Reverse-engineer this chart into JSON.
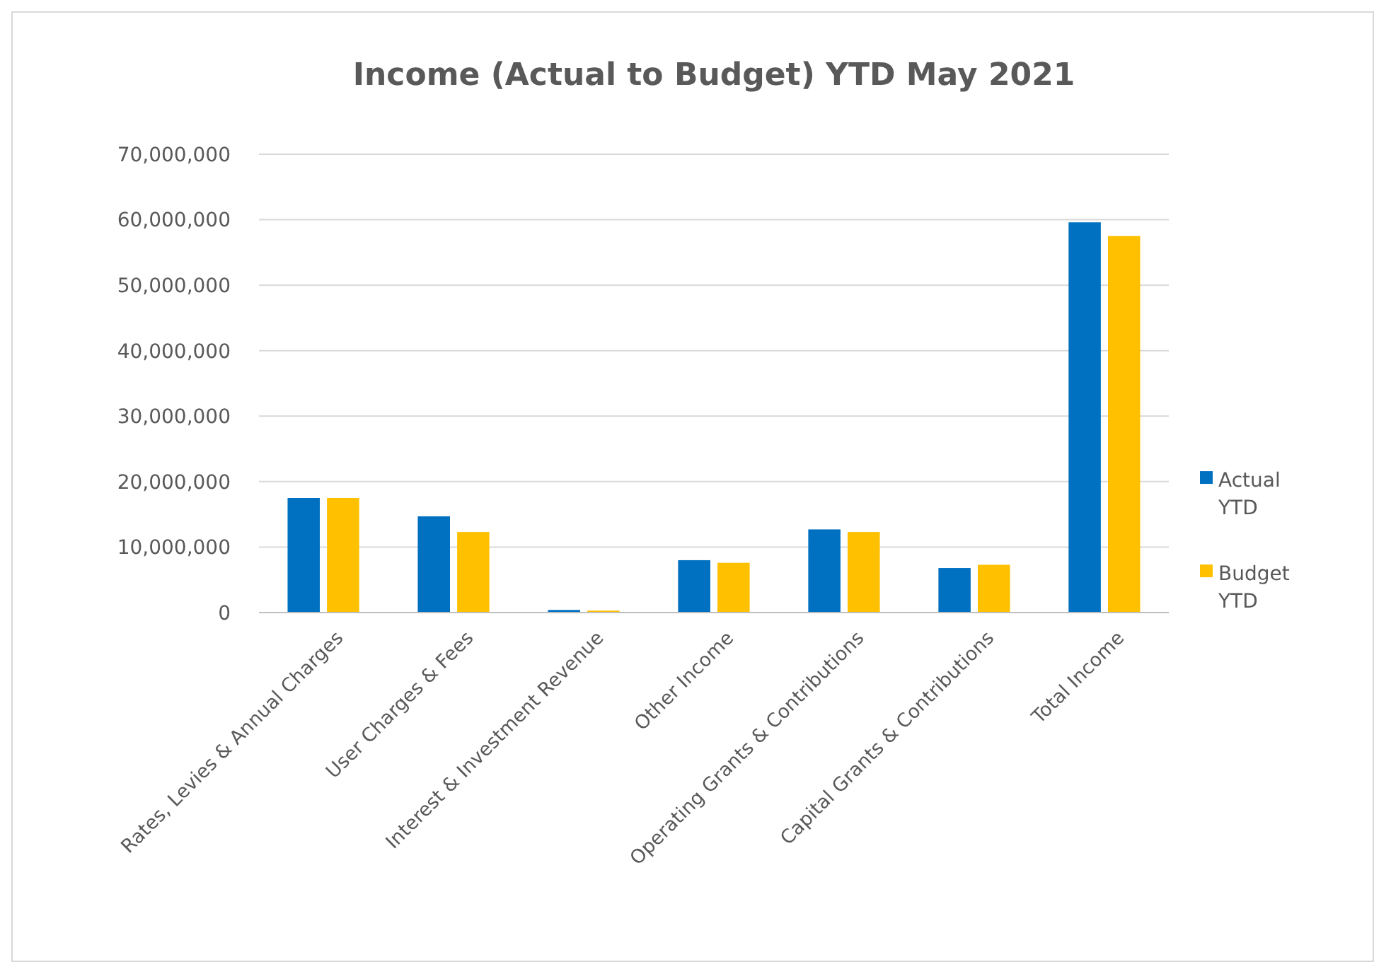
{
  "chart_data": {
    "type": "bar",
    "title": "Income (Actual to Budget) YTD May 2021",
    "categories": [
      "Rates, Levies & Annual Charges",
      "User Charges & Fees",
      "Interest & Investment Revenue",
      "Other Income",
      "Operating Grants & Contributions",
      "Capital Grants & Contributions",
      "Total Income"
    ],
    "series": [
      {
        "name": "Actual YTD",
        "color": "#0070c0",
        "values": [
          17500000,
          14700000,
          400000,
          8000000,
          12700000,
          6800000,
          59600000
        ]
      },
      {
        "name": "Budget YTD",
        "color": "#ffc000",
        "values": [
          17500000,
          12300000,
          300000,
          7600000,
          12300000,
          7300000,
          57500000
        ]
      }
    ],
    "ylim": [
      0,
      70000000
    ],
    "yticks": [
      {
        "value": 0,
        "label": "0"
      },
      {
        "value": 10000000,
        "label": "10,000,000"
      },
      {
        "value": 20000000,
        "label": "20,000,000"
      },
      {
        "value": 30000000,
        "label": "30,000,000"
      },
      {
        "value": 40000000,
        "label": "40,000,000"
      },
      {
        "value": 50000000,
        "label": "50,000,000"
      },
      {
        "value": 60000000,
        "label": "60,000,000"
      },
      {
        "value": 70000000,
        "label": "70,000,000"
      }
    ],
    "grid": "y",
    "legend": "right"
  }
}
